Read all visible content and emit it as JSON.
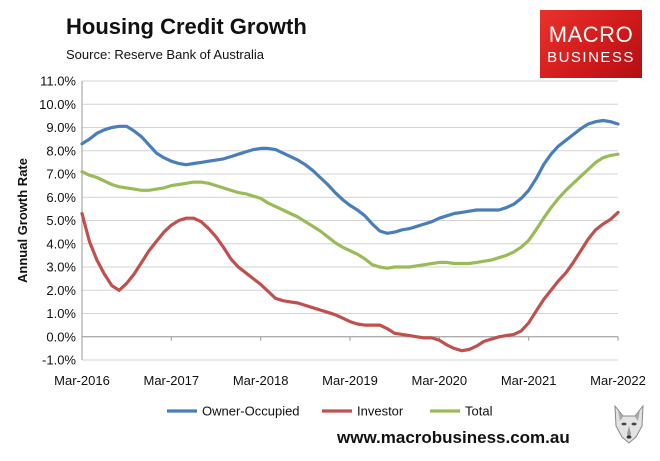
{
  "header": {
    "title": "Housing Credit Growth",
    "source": "Source: Reserve Bank of Australia"
  },
  "logo": {
    "line1": "MACRO",
    "line2": "BUSINESS",
    "color": "#d41d1d"
  },
  "footer": {
    "website": "www.macrobusiness.com.au"
  },
  "chart_data": {
    "type": "line",
    "title": "Housing Credit Growth",
    "ylabel": "Annual Growth Rate",
    "xlabel": "",
    "ylim": [
      -1,
      11
    ],
    "xlim": [
      "2016-03",
      "2022-03"
    ],
    "yticks": [
      "-1.0%",
      "0.0%",
      "1.0%",
      "2.0%",
      "3.0%",
      "4.0%",
      "5.0%",
      "6.0%",
      "7.0%",
      "8.0%",
      "9.0%",
      "10.0%",
      "11.0%"
    ],
    "xticks": [
      "Mar-2016",
      "Mar-2017",
      "Mar-2018",
      "Mar-2019",
      "Mar-2020",
      "Mar-2021",
      "Mar-2022"
    ],
    "grid": true,
    "legend_position": "bottom",
    "series": [
      {
        "name": "Owner-Occupied",
        "color": "#4a7ebb",
        "points": [
          [
            "2016-03",
            8.3
          ],
          [
            "2016-04",
            8.5
          ],
          [
            "2016-05",
            8.75
          ],
          [
            "2016-06",
            8.9
          ],
          [
            "2016-07",
            9.0
          ],
          [
            "2016-08",
            9.05
          ],
          [
            "2016-09",
            9.05
          ],
          [
            "2016-10",
            8.85
          ],
          [
            "2016-11",
            8.6
          ],
          [
            "2016-12",
            8.25
          ],
          [
            "2017-01",
            7.9
          ],
          [
            "2017-02",
            7.7
          ],
          [
            "2017-03",
            7.55
          ],
          [
            "2017-04",
            7.45
          ],
          [
            "2017-05",
            7.4
          ],
          [
            "2017-06",
            7.45
          ],
          [
            "2017-07",
            7.5
          ],
          [
            "2017-08",
            7.55
          ],
          [
            "2017-09",
            7.6
          ],
          [
            "2017-10",
            7.65
          ],
          [
            "2017-11",
            7.75
          ],
          [
            "2017-12",
            7.85
          ],
          [
            "2018-01",
            7.95
          ],
          [
            "2018-02",
            8.05
          ],
          [
            "2018-03",
            8.1
          ],
          [
            "2018-04",
            8.1
          ],
          [
            "2018-05",
            8.05
          ],
          [
            "2018-06",
            7.9
          ],
          [
            "2018-07",
            7.75
          ],
          [
            "2018-08",
            7.6
          ],
          [
            "2018-09",
            7.4
          ],
          [
            "2018-10",
            7.15
          ],
          [
            "2018-11",
            6.85
          ],
          [
            "2018-12",
            6.55
          ],
          [
            "2019-01",
            6.2
          ],
          [
            "2019-02",
            5.9
          ],
          [
            "2019-03",
            5.65
          ],
          [
            "2019-04",
            5.45
          ],
          [
            "2019-05",
            5.2
          ],
          [
            "2019-06",
            4.85
          ],
          [
            "2019-07",
            4.55
          ],
          [
            "2019-08",
            4.45
          ],
          [
            "2019-09",
            4.5
          ],
          [
            "2019-10",
            4.6
          ],
          [
            "2019-11",
            4.65
          ],
          [
            "2019-12",
            4.75
          ],
          [
            "2020-01",
            4.85
          ],
          [
            "2020-02",
            4.95
          ],
          [
            "2020-03",
            5.1
          ],
          [
            "2020-04",
            5.2
          ],
          [
            "2020-05",
            5.3
          ],
          [
            "2020-06",
            5.35
          ],
          [
            "2020-07",
            5.4
          ],
          [
            "2020-08",
            5.45
          ],
          [
            "2020-09",
            5.45
          ],
          [
            "2020-10",
            5.45
          ],
          [
            "2020-11",
            5.45
          ],
          [
            "2020-12",
            5.55
          ],
          [
            "2021-01",
            5.7
          ],
          [
            "2021-02",
            5.95
          ],
          [
            "2021-03",
            6.3
          ],
          [
            "2021-04",
            6.8
          ],
          [
            "2021-05",
            7.4
          ],
          [
            "2021-06",
            7.85
          ],
          [
            "2021-07",
            8.2
          ],
          [
            "2021-08",
            8.45
          ],
          [
            "2021-09",
            8.7
          ],
          [
            "2021-10",
            8.95
          ],
          [
            "2021-11",
            9.15
          ],
          [
            "2021-12",
            9.25
          ],
          [
            "2022-01",
            9.3
          ],
          [
            "2022-02",
            9.25
          ],
          [
            "2022-03",
            9.15
          ]
        ]
      },
      {
        "name": "Investor",
        "color": "#c0504d",
        "points": [
          [
            "2016-03",
            5.3
          ],
          [
            "2016-04",
            4.1
          ],
          [
            "2016-05",
            3.3
          ],
          [
            "2016-06",
            2.7
          ],
          [
            "2016-07",
            2.2
          ],
          [
            "2016-08",
            2.0
          ],
          [
            "2016-09",
            2.3
          ],
          [
            "2016-10",
            2.7
          ],
          [
            "2016-11",
            3.2
          ],
          [
            "2016-12",
            3.7
          ],
          [
            "2017-01",
            4.1
          ],
          [
            "2017-02",
            4.5
          ],
          [
            "2017-03",
            4.8
          ],
          [
            "2017-04",
            5.0
          ],
          [
            "2017-05",
            5.1
          ],
          [
            "2017-06",
            5.1
          ],
          [
            "2017-07",
            4.95
          ],
          [
            "2017-08",
            4.65
          ],
          [
            "2017-09",
            4.3
          ],
          [
            "2017-10",
            3.85
          ],
          [
            "2017-11",
            3.35
          ],
          [
            "2017-12",
            3.0
          ],
          [
            "2018-01",
            2.75
          ],
          [
            "2018-02",
            2.5
          ],
          [
            "2018-03",
            2.25
          ],
          [
            "2018-04",
            1.95
          ],
          [
            "2018-05",
            1.65
          ],
          [
            "2018-06",
            1.55
          ],
          [
            "2018-07",
            1.5
          ],
          [
            "2018-08",
            1.45
          ],
          [
            "2018-09",
            1.35
          ],
          [
            "2018-10",
            1.25
          ],
          [
            "2018-11",
            1.15
          ],
          [
            "2018-12",
            1.05
          ],
          [
            "2019-01",
            0.95
          ],
          [
            "2019-02",
            0.8
          ],
          [
            "2019-03",
            0.65
          ],
          [
            "2019-04",
            0.55
          ],
          [
            "2019-05",
            0.5
          ],
          [
            "2019-06",
            0.5
          ],
          [
            "2019-07",
            0.5
          ],
          [
            "2019-08",
            0.35
          ],
          [
            "2019-09",
            0.15
          ],
          [
            "2019-10",
            0.1
          ],
          [
            "2019-11",
            0.05
          ],
          [
            "2019-12",
            0.0
          ],
          [
            "2020-01",
            -0.05
          ],
          [
            "2020-02",
            -0.05
          ],
          [
            "2020-03",
            -0.15
          ],
          [
            "2020-04",
            -0.35
          ],
          [
            "2020-05",
            -0.5
          ],
          [
            "2020-06",
            -0.6
          ],
          [
            "2020-07",
            -0.55
          ],
          [
            "2020-08",
            -0.4
          ],
          [
            "2020-09",
            -0.2
          ],
          [
            "2020-10",
            -0.1
          ],
          [
            "2020-11",
            0.0
          ],
          [
            "2020-12",
            0.05
          ],
          [
            "2021-01",
            0.1
          ],
          [
            "2021-02",
            0.25
          ],
          [
            "2021-03",
            0.6
          ],
          [
            "2021-04",
            1.1
          ],
          [
            "2021-05",
            1.6
          ],
          [
            "2021-06",
            2.0
          ],
          [
            "2021-07",
            2.4
          ],
          [
            "2021-08",
            2.75
          ],
          [
            "2021-09",
            3.2
          ],
          [
            "2021-10",
            3.7
          ],
          [
            "2021-11",
            4.2
          ],
          [
            "2021-12",
            4.6
          ],
          [
            "2022-01",
            4.85
          ],
          [
            "2022-02",
            5.05
          ],
          [
            "2022-03",
            5.35
          ]
        ]
      },
      {
        "name": "Total",
        "color": "#9bbb59",
        "points": [
          [
            "2016-03",
            7.1
          ],
          [
            "2016-04",
            6.95
          ],
          [
            "2016-05",
            6.85
          ],
          [
            "2016-06",
            6.7
          ],
          [
            "2016-07",
            6.55
          ],
          [
            "2016-08",
            6.45
          ],
          [
            "2016-09",
            6.4
          ],
          [
            "2016-10",
            6.35
          ],
          [
            "2016-11",
            6.3
          ],
          [
            "2016-12",
            6.3
          ],
          [
            "2017-01",
            6.35
          ],
          [
            "2017-02",
            6.4
          ],
          [
            "2017-03",
            6.5
          ],
          [
            "2017-04",
            6.55
          ],
          [
            "2017-05",
            6.6
          ],
          [
            "2017-06",
            6.65
          ],
          [
            "2017-07",
            6.65
          ],
          [
            "2017-08",
            6.6
          ],
          [
            "2017-09",
            6.5
          ],
          [
            "2017-10",
            6.4
          ],
          [
            "2017-11",
            6.3
          ],
          [
            "2017-12",
            6.2
          ],
          [
            "2018-01",
            6.15
          ],
          [
            "2018-02",
            6.05
          ],
          [
            "2018-03",
            5.95
          ],
          [
            "2018-04",
            5.75
          ],
          [
            "2018-05",
            5.6
          ],
          [
            "2018-06",
            5.45
          ],
          [
            "2018-07",
            5.3
          ],
          [
            "2018-08",
            5.15
          ],
          [
            "2018-09",
            4.95
          ],
          [
            "2018-10",
            4.75
          ],
          [
            "2018-11",
            4.55
          ],
          [
            "2018-12",
            4.3
          ],
          [
            "2019-01",
            4.05
          ],
          [
            "2019-02",
            3.85
          ],
          [
            "2019-03",
            3.7
          ],
          [
            "2019-04",
            3.55
          ],
          [
            "2019-05",
            3.35
          ],
          [
            "2019-06",
            3.1
          ],
          [
            "2019-07",
            3.0
          ],
          [
            "2019-08",
            2.95
          ],
          [
            "2019-09",
            3.0
          ],
          [
            "2019-10",
            3.0
          ],
          [
            "2019-11",
            3.0
          ],
          [
            "2019-12",
            3.05
          ],
          [
            "2020-01",
            3.1
          ],
          [
            "2020-02",
            3.15
          ],
          [
            "2020-03",
            3.2
          ],
          [
            "2020-04",
            3.2
          ],
          [
            "2020-05",
            3.15
          ],
          [
            "2020-06",
            3.15
          ],
          [
            "2020-07",
            3.15
          ],
          [
            "2020-08",
            3.2
          ],
          [
            "2020-09",
            3.25
          ],
          [
            "2020-10",
            3.3
          ],
          [
            "2020-11",
            3.4
          ],
          [
            "2020-12",
            3.5
          ],
          [
            "2021-01",
            3.65
          ],
          [
            "2021-02",
            3.85
          ],
          [
            "2021-03",
            4.15
          ],
          [
            "2021-04",
            4.6
          ],
          [
            "2021-05",
            5.1
          ],
          [
            "2021-06",
            5.55
          ],
          [
            "2021-07",
            5.95
          ],
          [
            "2021-08",
            6.3
          ],
          [
            "2021-09",
            6.6
          ],
          [
            "2021-10",
            6.9
          ],
          [
            "2021-11",
            7.2
          ],
          [
            "2021-12",
            7.5
          ],
          [
            "2022-01",
            7.7
          ],
          [
            "2022-02",
            7.8
          ],
          [
            "2022-03",
            7.85
          ]
        ]
      }
    ]
  }
}
